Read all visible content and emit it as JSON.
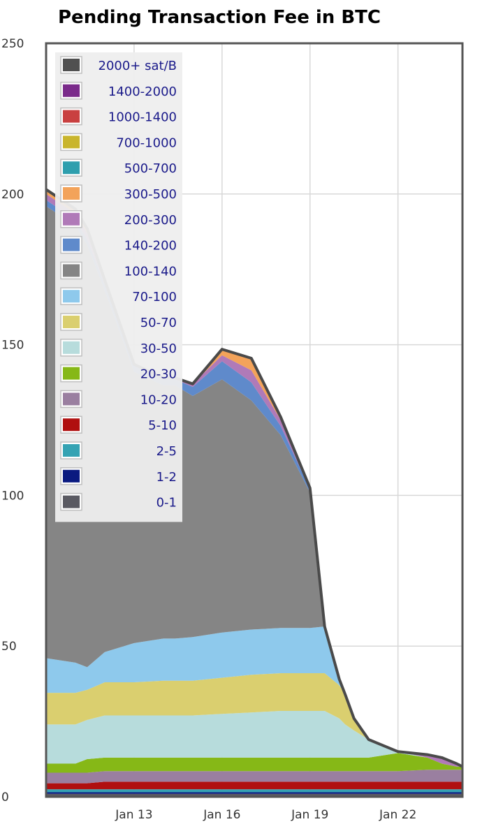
{
  "chart_data": {
    "type": "area",
    "title": "Pending Transaction Fee in BTC",
    "xlabel": "",
    "ylabel": "",
    "ylim": [
      0,
      250
    ],
    "xlim": [
      10.0,
      24.2
    ],
    "y_ticks": [
      0,
      50,
      100,
      150,
      200,
      250
    ],
    "x_ticks": [
      {
        "value": 13,
        "label": "Jan 13"
      },
      {
        "value": 16,
        "label": "Jan 16"
      },
      {
        "value": 19,
        "label": "Jan 19"
      },
      {
        "value": 22,
        "label": "Jan 22"
      }
    ],
    "grid": true,
    "legend": "top-left",
    "x": [
      10.0,
      11.0,
      11.4,
      12.0,
      13.0,
      14.0,
      14.4,
      15.0,
      16.0,
      17.0,
      18.0,
      19.0,
      19.5,
      20.0,
      20.2,
      20.5,
      21.0,
      22.0,
      23.0,
      23.5,
      24.0,
      24.2
    ],
    "series": [
      {
        "name": "0-1",
        "color": "#5a5a62",
        "values": [
          1.0,
          1.0,
          1.0,
          1.0,
          1.0,
          1.0,
          1.0,
          1.0,
          1.0,
          1.0,
          1.0,
          1.0,
          1.0,
          1.0,
          1.0,
          1.0,
          1.0,
          1.0,
          1.0,
          1.0,
          1.0,
          1.0
        ]
      },
      {
        "name": "1-2",
        "color": "#0a1a80",
        "values": [
          0.5,
          0.5,
          0.5,
          0.5,
          0.5,
          0.5,
          0.5,
          0.5,
          0.5,
          0.5,
          0.5,
          0.5,
          0.5,
          0.5,
          0.5,
          0.5,
          0.5,
          0.5,
          0.5,
          0.5,
          0.5,
          0.5
        ]
      },
      {
        "name": "2-5",
        "color": "#35a3b3",
        "values": [
          1.0,
          1.0,
          1.0,
          1.0,
          1.0,
          1.0,
          1.0,
          1.0,
          1.0,
          1.0,
          1.0,
          1.0,
          1.0,
          1.0,
          1.0,
          1.0,
          1.0,
          1.0,
          1.0,
          1.0,
          1.0,
          1.0
        ]
      },
      {
        "name": "5-10",
        "color": "#b01010",
        "values": [
          2.0,
          2.0,
          2.0,
          2.5,
          2.5,
          2.5,
          2.5,
          2.5,
          2.5,
          2.5,
          2.5,
          2.5,
          2.5,
          2.5,
          2.5,
          2.5,
          2.5,
          2.5,
          2.5,
          2.5,
          2.5,
          2.5
        ]
      },
      {
        "name": "10-20",
        "color": "#9a7fa0",
        "values": [
          3.5,
          3.5,
          3.5,
          3.5,
          3.5,
          3.5,
          3.5,
          3.5,
          3.5,
          3.5,
          3.5,
          3.5,
          3.5,
          3.5,
          3.5,
          3.5,
          3.5,
          3.5,
          4.0,
          4.0,
          4.0,
          4.0
        ]
      },
      {
        "name": "20-30",
        "color": "#86b817",
        "values": [
          3.0,
          3.0,
          4.5,
          4.5,
          4.5,
          4.5,
          4.5,
          4.5,
          4.5,
          4.5,
          4.5,
          4.5,
          4.5,
          4.5,
          4.5,
          4.5,
          4.5,
          6.0,
          4.0,
          2.0,
          1.0,
          1.0
        ]
      },
      {
        "name": "30-50",
        "color": "#b7dcdc",
        "values": [
          13.0,
          13.0,
          13.0,
          14.0,
          14.0,
          14.0,
          14.0,
          14.0,
          14.5,
          15.0,
          15.5,
          15.5,
          15.5,
          13.0,
          11.0,
          9.0,
          6.0,
          0.5,
          0.0,
          0.0,
          0.0,
          0.0
        ]
      },
      {
        "name": "50-70",
        "color": "#dacf6f",
        "values": [
          10.5,
          10.5,
          10.0,
          11.0,
          11.0,
          11.5,
          11.5,
          11.5,
          12.0,
          12.5,
          12.5,
          12.5,
          12.5,
          11.0,
          10.0,
          4.0,
          0.0,
          0.0,
          0.0,
          0.0,
          0.0,
          0.0
        ]
      },
      {
        "name": "70-100",
        "color": "#8ec9ec",
        "values": [
          11.5,
          10.0,
          7.5,
          10.0,
          13.0,
          14.0,
          14.0,
          14.5,
          15.0,
          15.0,
          15.0,
          15.0,
          15.5,
          2.0,
          0.0,
          0.0,
          0.0,
          0.0,
          0.0,
          0.0,
          0.0,
          0.0
        ]
      },
      {
        "name": "100-140",
        "color": "#858585",
        "values": [
          150.0,
          145.0,
          140.0,
          120.0,
          90.0,
          84.0,
          84.0,
          80.0,
          84.0,
          76.0,
          64.0,
          45.0,
          0.0,
          0.0,
          0.0,
          0.0,
          0.0,
          0.0,
          0.0,
          0.0,
          0.0,
          0.0
        ]
      },
      {
        "name": "140-200",
        "color": "#5f8acb",
        "values": [
          2.0,
          2.0,
          2.0,
          2.0,
          2.0,
          2.0,
          2.0,
          3.0,
          6.0,
          6.0,
          3.0,
          1.0,
          0.0,
          0.0,
          0.0,
          0.0,
          0.0,
          0.0,
          0.0,
          0.0,
          0.0,
          0.0
        ]
      },
      {
        "name": "200-300",
        "color": "#b07ab8",
        "values": [
          2.0,
          2.0,
          2.0,
          1.0,
          0.5,
          0.5,
          0.5,
          1.0,
          2.0,
          4.0,
          2.0,
          0.5,
          0.0,
          0.0,
          0.0,
          0.0,
          0.0,
          0.0,
          1.0,
          2.0,
          1.0,
          0.0
        ]
      },
      {
        "name": "300-500",
        "color": "#f3a35a",
        "values": [
          1.0,
          1.0,
          1.0,
          0.5,
          0.0,
          0.0,
          0.0,
          0.0,
          2.0,
          4.0,
          1.0,
          0.0,
          0.0,
          0.0,
          0.0,
          0.0,
          0.0,
          0.0,
          0.0,
          0.0,
          0.0,
          0.0
        ]
      },
      {
        "name": "500-700",
        "color": "#2e9fae",
        "values": [
          0.5,
          0.5,
          0.5,
          0.0,
          0.0,
          0.0,
          0.0,
          0.0,
          0.0,
          0.0,
          0.0,
          0.0,
          0.0,
          0.0,
          0.0,
          0.0,
          0.0,
          0.0,
          0.0,
          0.0,
          0.0,
          0.0
        ]
      },
      {
        "name": "700-1000",
        "color": "#c9b52d",
        "values": [
          0.0,
          0.0,
          0.0,
          0.0,
          0.0,
          0.0,
          0.0,
          0.0,
          0.0,
          0.0,
          0.0,
          0.0,
          0.0,
          0.0,
          0.0,
          0.0,
          0.0,
          0.0,
          0.0,
          0.0,
          0.0,
          0.0
        ]
      },
      {
        "name": "1000-1400",
        "color": "#c94040",
        "values": [
          0.0,
          0.0,
          0.0,
          0.0,
          0.0,
          0.0,
          0.0,
          0.0,
          0.0,
          0.0,
          0.0,
          0.0,
          0.0,
          0.0,
          0.0,
          0.0,
          0.0,
          0.0,
          0.0,
          0.0,
          0.0,
          0.0
        ]
      },
      {
        "name": "1400-2000",
        "color": "#7a2a8a",
        "values": [
          0.0,
          0.0,
          0.0,
          0.0,
          0.0,
          0.0,
          0.0,
          0.0,
          0.0,
          0.0,
          0.0,
          0.0,
          0.0,
          0.0,
          0.0,
          0.0,
          0.0,
          0.0,
          0.0,
          0.0,
          0.0,
          0.0
        ]
      },
      {
        "name": "2000+ sat/B",
        "color": "#505050",
        "values": [
          0.0,
          0.0,
          0.0,
          0.0,
          0.0,
          0.0,
          0.0,
          0.0,
          0.0,
          0.0,
          0.0,
          0.0,
          0.0,
          0.0,
          0.0,
          0.0,
          0.0,
          0.0,
          0.0,
          0.0,
          0.0,
          0.0
        ]
      }
    ]
  }
}
